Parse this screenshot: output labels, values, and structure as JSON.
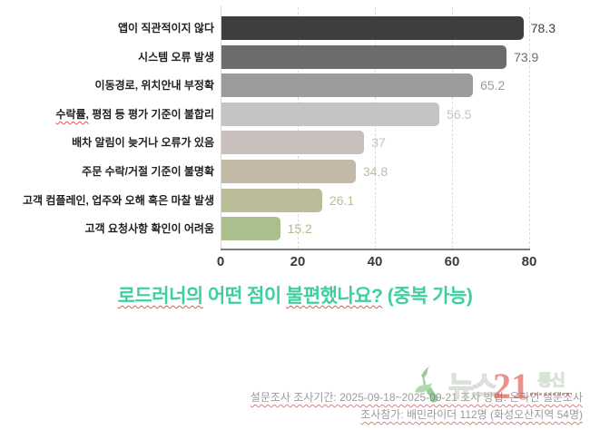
{
  "chart_data": {
    "type": "bar",
    "orientation": "horizontal",
    "title": "로드러너의 어떤 점이 불편했나요? (중복 가능)",
    "title_color": "#3ecfa0",
    "categories": [
      "앱이 직관적이지 않다",
      "시스템 오류 발생",
      "이동경로, 위치안내 부정확",
      "수락률, 평점 등 평가 기준이 불합리",
      "배차 알림이 늦거나 오류가 있음",
      "주문 수락/거절 기준이 불명확",
      "고객 컴플레인, 업주와 오해 혹은 마찰 발생",
      "고객 요청사항 확인이 어려움"
    ],
    "values": [
      78.3,
      73.9,
      65.2,
      56.5,
      37,
      34.8,
      26.1,
      15.2
    ],
    "value_labels": [
      "78.3",
      "73.9",
      "65.2",
      "56.5",
      "37",
      "34.8",
      "26.1",
      "15.2"
    ],
    "bar_colors": [
      "#3e3e3e",
      "#6c6c6c",
      "#9b9b9b",
      "#c4c4c6",
      "#c9c0bd",
      "#c2b9a6",
      "#babd97",
      "#aabe8e"
    ],
    "xlabel": "",
    "ylabel": "",
    "xlim": [
      0,
      80
    ],
    "x_ticks": [
      "0",
      "20",
      "40",
      "60",
      "80"
    ],
    "grid": "vertical-dashed",
    "legend": "none",
    "spellcheck_underlines": [
      "수락률,"
    ]
  },
  "title_parts": [
    {
      "text": "로드러너의",
      "misspelled": true
    },
    {
      "text": " 어떤 점이 ",
      "misspelled": false
    },
    {
      "text": "불편했나요?",
      "misspelled": true
    },
    {
      "text": " (중복 가능)",
      "misspelled": false
    }
  ],
  "footnotes": {
    "line1": "설문조사 조사기간: 2025-09-18~2025-09-21 조사 방법: 온라인 설문조사",
    "line2": "조사참가: 배민라이더 112명 (화성오산지역 54명)"
  },
  "watermark": {
    "news": "뉴스",
    "number": "21",
    "tongsin": "통신",
    "green": "#4c9f4f",
    "light_green": "#74bb67",
    "red": "#dd372b"
  }
}
